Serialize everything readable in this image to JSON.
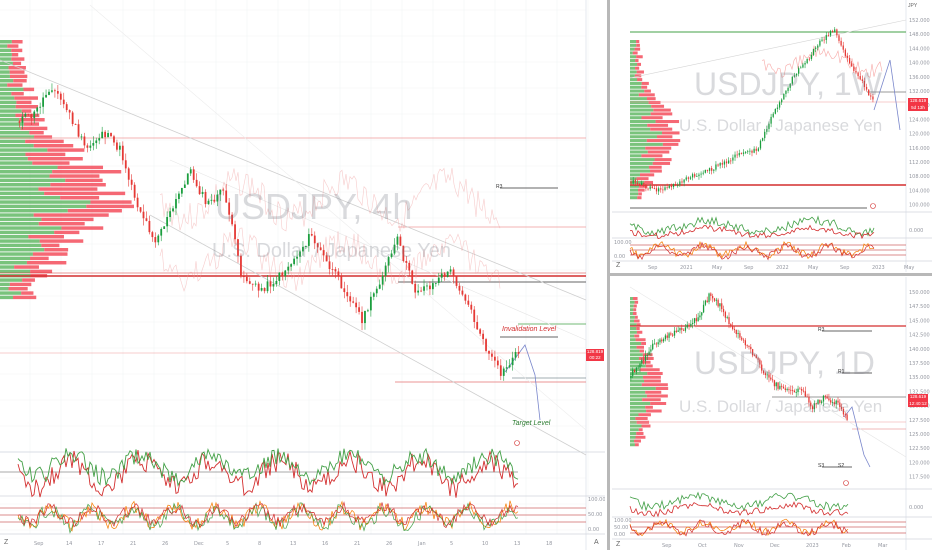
{
  "panes": {
    "h4": {
      "symbol_watermark": "USDJPY, 4h",
      "name_watermark": "U.S. Dollar / Japanese Yen",
      "price_badge": "128.819",
      "price_badge_sub": "00:22",
      "annotations": {
        "invalidation": "Invalidation Level",
        "target": "Target Level",
        "r3": "R3"
      },
      "x_ticks": [
        "Sep",
        "14",
        "17",
        "21",
        "26",
        "Dec",
        "5",
        "8",
        "13",
        "16",
        "21",
        "26",
        "Jan",
        "5",
        "10",
        "13",
        "18"
      ],
      "osc_ticks": [
        "100.00",
        "50.00",
        "0.00"
      ]
    },
    "weekly": {
      "symbol_watermark": "USDJPY, 1W",
      "name_watermark": "U.S. Dollar / Japanese Yen",
      "price_badge": "128.619",
      "price_badge_sub": "5d 13h",
      "currency": "JPY",
      "y_ticks": [
        "152.000",
        "148.000",
        "144.000",
        "140.000",
        "136.000",
        "132.000",
        "128.000",
        "124.000",
        "120.000",
        "116.000",
        "112.000",
        "108.000",
        "104.000",
        "100.000"
      ],
      "x_ticks": [
        "Sep",
        "2021",
        "May",
        "Sep",
        "2022",
        "May",
        "Sep",
        "2023",
        "May"
      ],
      "osc_ticks": [
        "0.000",
        "100.00",
        "0.00"
      ]
    },
    "daily": {
      "symbol_watermark": "USDJPY, 1D",
      "name_watermark": "U.S. Dollar / Japanese Yen",
      "price_badge": "128.619",
      "price_badge_sub": "12:40:12",
      "y_ticks": [
        "150.000",
        "147.500",
        "145.000",
        "142.500",
        "140.000",
        "137.500",
        "135.000",
        "132.500",
        "130.000",
        "127.500",
        "125.000",
        "122.500",
        "120.000",
        "117.500"
      ],
      "levels": {
        "r3": "R3",
        "r1": "R1",
        "s3": "S3",
        "s2": "S2"
      },
      "x_ticks": [
        "Sep",
        "Oct",
        "Nov",
        "Dec",
        "2023",
        "Feb",
        "Mar"
      ],
      "osc_ticks": [
        "0.000",
        "100.00",
        "50.00",
        "0.00"
      ]
    }
  },
  "colors": {
    "up": "#089981",
    "up_candle": "#1b9e3e",
    "down": "#e53935",
    "profile_up": "#4caf50",
    "profile_down": "#f23645",
    "level_red": "#d32f2f",
    "level_green": "#43a047"
  }
}
